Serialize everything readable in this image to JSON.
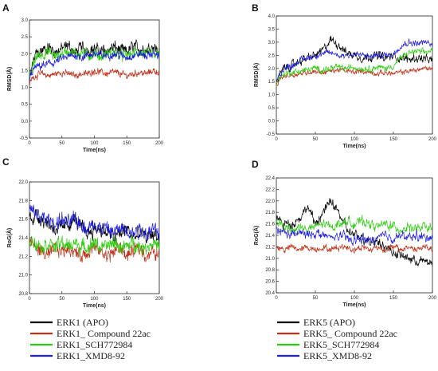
{
  "chart_data": [
    {
      "type": "line",
      "panel": "A",
      "xlabel": "Time(ns)",
      "ylabel": "RMSD(Å)",
      "xlim": [
        0,
        200
      ],
      "ylim": [
        -0.5,
        3.0
      ],
      "xticks": [
        0,
        50,
        100,
        150,
        200
      ],
      "yticks": [
        -0.5,
        0.0,
        0.5,
        1.0,
        1.5,
        2.0,
        2.5,
        3.0
      ],
      "series": [
        {
          "name": "ERK1 (APO)",
          "color": "#000000",
          "x": [
            0,
            5,
            10,
            20,
            30,
            40,
            50,
            60,
            70,
            80,
            90,
            100,
            110,
            120,
            130,
            140,
            150,
            160,
            170,
            180,
            190,
            200
          ],
          "y": [
            1.2,
            1.7,
            2.0,
            2.1,
            2.2,
            2.05,
            2.15,
            2.25,
            2.0,
            2.2,
            2.1,
            2.15,
            2.05,
            2.1,
            2.2,
            2.1,
            2.05,
            2.2,
            2.15,
            2.1,
            2.25,
            2.05
          ],
          "noise": 0.22
        },
        {
          "name": "ERK1_ Compound 22ac",
          "color": "#c0311a",
          "x": [
            0,
            5,
            10,
            20,
            30,
            40,
            50,
            60,
            70,
            80,
            90,
            100,
            110,
            120,
            130,
            140,
            150,
            160,
            170,
            180,
            190,
            200
          ],
          "y": [
            1.1,
            1.3,
            1.35,
            1.4,
            1.35,
            1.4,
            1.45,
            1.4,
            1.35,
            1.4,
            1.4,
            1.5,
            1.45,
            1.4,
            1.45,
            1.4,
            1.35,
            1.4,
            1.45,
            1.4,
            1.5,
            1.45
          ],
          "noise": 0.12
        },
        {
          "name": "ERK1_SCH772984",
          "color": "#2ecc10",
          "x": [
            0,
            5,
            10,
            20,
            30,
            40,
            50,
            60,
            70,
            80,
            90,
            100,
            110,
            120,
            130,
            140,
            150,
            160,
            170,
            180,
            190,
            200
          ],
          "y": [
            1.2,
            1.6,
            1.9,
            2.0,
            2.05,
            1.9,
            2.0,
            2.1,
            2.0,
            2.05,
            1.95,
            2.0,
            1.9,
            2.0,
            2.05,
            1.95,
            1.95,
            2.0,
            2.05,
            1.95,
            2.0,
            1.95
          ],
          "noise": 0.2
        },
        {
          "name": "ERK1_XMD8-92",
          "color": "#1e1ee0",
          "x": [
            0,
            5,
            10,
            20,
            30,
            40,
            50,
            60,
            70,
            80,
            90,
            100,
            110,
            120,
            130,
            140,
            150,
            160,
            170,
            180,
            190,
            200
          ],
          "y": [
            1.2,
            1.5,
            1.6,
            1.65,
            1.7,
            1.75,
            1.85,
            1.9,
            1.95,
            1.9,
            1.95,
            2.0,
            1.95,
            1.95,
            2.0,
            1.95,
            1.9,
            1.95,
            2.0,
            1.95,
            2.0,
            1.95
          ],
          "noise": 0.15
        }
      ]
    },
    {
      "type": "line",
      "panel": "B",
      "xlabel": "Time(ns)",
      "ylabel": "RMSD(Å)",
      "xlim": [
        0,
        200
      ],
      "ylim": [
        -0.5,
        4.0
      ],
      "xticks": [
        0,
        50,
        100,
        150,
        200
      ],
      "yticks": [
        -0.5,
        0.0,
        0.5,
        1.0,
        1.5,
        2.0,
        2.5,
        3.0,
        3.5,
        4.0
      ],
      "series": [
        {
          "name": "ERK5 (APO)",
          "color": "#000000",
          "x": [
            0,
            5,
            10,
            20,
            30,
            40,
            50,
            60,
            70,
            80,
            90,
            100,
            110,
            120,
            130,
            140,
            150,
            160,
            170,
            180,
            190,
            200
          ],
          "y": [
            1.5,
            1.8,
            2.0,
            2.1,
            2.3,
            2.4,
            2.5,
            2.7,
            3.1,
            2.9,
            2.6,
            2.5,
            2.4,
            2.45,
            2.5,
            2.4,
            2.45,
            2.4,
            2.35,
            2.4,
            2.35,
            2.3
          ],
          "noise": 0.2
        },
        {
          "name": "ERK5_ Compound 22ac",
          "color": "#c0311a",
          "x": [
            0,
            5,
            10,
            20,
            30,
            40,
            50,
            60,
            70,
            80,
            90,
            100,
            110,
            120,
            130,
            140,
            150,
            160,
            170,
            180,
            190,
            200
          ],
          "y": [
            1.3,
            1.6,
            1.7,
            1.75,
            1.8,
            1.85,
            1.9,
            1.85,
            1.9,
            1.95,
            1.9,
            1.85,
            1.9,
            1.85,
            1.8,
            1.85,
            1.8,
            1.85,
            1.9,
            1.95,
            2.0,
            2.0
          ],
          "noise": 0.12
        },
        {
          "name": "ERK5_SCH772984",
          "color": "#2ecc10",
          "x": [
            0,
            5,
            10,
            20,
            30,
            40,
            50,
            60,
            70,
            80,
            90,
            100,
            110,
            120,
            130,
            140,
            150,
            160,
            170,
            180,
            190,
            200
          ],
          "y": [
            1.4,
            1.7,
            1.8,
            1.85,
            1.9,
            1.95,
            2.0,
            1.95,
            2.0,
            2.05,
            2.0,
            2.05,
            2.0,
            2.0,
            2.05,
            2.0,
            2.1,
            2.4,
            2.6,
            2.65,
            2.6,
            2.7
          ],
          "noise": 0.15
        },
        {
          "name": "ERK5_XMD8-92",
          "color": "#1e1ee0",
          "x": [
            0,
            5,
            10,
            20,
            30,
            40,
            50,
            60,
            70,
            80,
            90,
            100,
            110,
            120,
            130,
            140,
            150,
            160,
            170,
            180,
            190,
            200
          ],
          "y": [
            1.5,
            1.8,
            2.0,
            2.1,
            2.3,
            2.4,
            2.5,
            2.55,
            2.6,
            2.5,
            2.5,
            2.55,
            2.5,
            2.45,
            2.5,
            2.5,
            2.55,
            2.9,
            3.0,
            2.95,
            3.0,
            2.9
          ],
          "noise": 0.15
        }
      ]
    },
    {
      "type": "line",
      "panel": "C",
      "xlabel": "Time(ns)",
      "ylabel": "RoG(Å)",
      "xlim": [
        0,
        200
      ],
      "ylim": [
        20.8,
        22.0
      ],
      "xticks": [
        0,
        50,
        100,
        150,
        200
      ],
      "yticks": [
        20.8,
        21.0,
        21.2,
        21.4,
        21.6,
        21.8,
        22.0
      ],
      "series": [
        {
          "name": "ERK1 (APO)",
          "color": "#000000",
          "x": [
            0,
            10,
            20,
            30,
            40,
            50,
            60,
            70,
            80,
            90,
            100,
            110,
            120,
            130,
            140,
            150,
            160,
            170,
            180,
            190,
            200
          ],
          "y": [
            21.6,
            21.65,
            21.6,
            21.55,
            21.5,
            21.5,
            21.55,
            21.6,
            21.5,
            21.45,
            21.5,
            21.5,
            21.45,
            21.4,
            21.45,
            21.5,
            21.4,
            21.45,
            21.4,
            21.45,
            21.4
          ],
          "noise": 0.1
        },
        {
          "name": "ERK1_ Compound 22ac",
          "color": "#c0311a",
          "x": [
            0,
            10,
            20,
            30,
            40,
            50,
            60,
            70,
            80,
            90,
            100,
            110,
            120,
            130,
            140,
            150,
            160,
            170,
            180,
            190,
            200
          ],
          "y": [
            21.35,
            21.3,
            21.25,
            21.2,
            21.3,
            21.25,
            21.3,
            21.25,
            21.2,
            21.25,
            21.3,
            21.25,
            21.2,
            21.25,
            21.3,
            21.2,
            21.25,
            21.3,
            21.2,
            21.25,
            21.2
          ],
          "noise": 0.09
        },
        {
          "name": "ERK1_SCH772984",
          "color": "#2ecc10",
          "x": [
            0,
            10,
            20,
            30,
            40,
            50,
            60,
            70,
            80,
            90,
            100,
            110,
            120,
            130,
            140,
            150,
            160,
            170,
            180,
            190,
            200
          ],
          "y": [
            21.4,
            21.35,
            21.3,
            21.35,
            21.3,
            21.35,
            21.3,
            21.35,
            21.3,
            21.3,
            21.35,
            21.3,
            21.3,
            21.35,
            21.3,
            21.3,
            21.35,
            21.3,
            21.3,
            21.35,
            21.3
          ],
          "noise": 0.09
        },
        {
          "name": "ERK1_XMD8-92",
          "color": "#1e1ee0",
          "x": [
            0,
            10,
            20,
            30,
            40,
            50,
            60,
            70,
            80,
            90,
            100,
            110,
            120,
            130,
            140,
            150,
            160,
            170,
            180,
            190,
            200
          ],
          "y": [
            21.7,
            21.65,
            21.6,
            21.6,
            21.55,
            21.6,
            21.55,
            21.6,
            21.55,
            21.5,
            21.55,
            21.5,
            21.5,
            21.45,
            21.5,
            21.5,
            21.45,
            21.5,
            21.45,
            21.5,
            21.45
          ],
          "noise": 0.1
        }
      ]
    },
    {
      "type": "line",
      "panel": "D",
      "xlabel": "Time(ns)",
      "ylabel": "RoG(Å)",
      "xlim": [
        0,
        200
      ],
      "ylim": [
        20.4,
        22.4
      ],
      "xticks": [
        0,
        50,
        100,
        150,
        200
      ],
      "yticks": [
        20.4,
        20.6,
        20.8,
        21.0,
        21.2,
        21.4,
        21.6,
        21.8,
        22.0,
        22.2,
        22.4
      ],
      "series": [
        {
          "name": "ERK5 (APO)",
          "color": "#000000",
          "x": [
            0,
            10,
            20,
            30,
            40,
            50,
            60,
            70,
            80,
            90,
            100,
            110,
            120,
            130,
            140,
            150,
            160,
            170,
            180,
            190,
            200
          ],
          "y": [
            21.7,
            21.6,
            21.6,
            21.7,
            21.9,
            21.6,
            21.8,
            22.0,
            21.8,
            21.5,
            21.4,
            21.35,
            21.3,
            21.3,
            21.2,
            21.1,
            21.05,
            21.0,
            20.95,
            20.95,
            20.9
          ],
          "noise": 0.1
        },
        {
          "name": "ERK5_ Compound 22ac",
          "color": "#c0311a",
          "x": [
            0,
            10,
            20,
            30,
            40,
            50,
            60,
            70,
            80,
            90,
            100,
            110,
            120,
            130,
            140,
            150,
            160,
            170,
            180,
            190,
            200
          ],
          "y": [
            21.2,
            21.15,
            21.2,
            21.15,
            21.2,
            21.15,
            21.2,
            21.15,
            21.2,
            21.2,
            21.15,
            21.2,
            21.15,
            21.2,
            21.15,
            21.2,
            21.15,
            21.2,
            21.15,
            21.2,
            21.15
          ],
          "noise": 0.07
        },
        {
          "name": "ERK5_SCH772984",
          "color": "#2ecc10",
          "x": [
            0,
            10,
            20,
            30,
            40,
            50,
            60,
            70,
            80,
            90,
            100,
            110,
            120,
            130,
            140,
            150,
            160,
            170,
            180,
            190,
            200
          ],
          "y": [
            21.6,
            21.55,
            21.5,
            21.55,
            21.5,
            21.55,
            21.6,
            21.55,
            21.6,
            21.65,
            21.6,
            21.65,
            21.6,
            21.55,
            21.6,
            21.55,
            21.5,
            21.55,
            21.5,
            21.55,
            21.5
          ],
          "noise": 0.1
        },
        {
          "name": "ERK5_XMD8-92",
          "color": "#1e1ee0",
          "x": [
            0,
            10,
            20,
            30,
            40,
            50,
            60,
            70,
            80,
            90,
            100,
            110,
            120,
            130,
            140,
            150,
            160,
            170,
            180,
            190,
            200
          ],
          "y": [
            21.5,
            21.45,
            21.4,
            21.45,
            21.4,
            21.45,
            21.4,
            21.35,
            21.4,
            21.35,
            21.3,
            21.35,
            21.3,
            21.35,
            21.4,
            21.35,
            21.4,
            21.35,
            21.4,
            21.35,
            21.4
          ],
          "noise": 0.1
        }
      ]
    }
  ],
  "legends": [
    {
      "items": [
        {
          "label": "ERK1 (APO)",
          "color": "#000000"
        },
        {
          "label": "ERK1_ Compound 22ac",
          "color": "#c0311a"
        },
        {
          "label": "ERK1_SCH772984",
          "color": "#2ecc10"
        },
        {
          "label": "ERK1_XMD8-92",
          "color": "#1e1ee0"
        }
      ]
    },
    {
      "items": [
        {
          "label": "ERK5 (APO)",
          "color": "#000000"
        },
        {
          "label": "ERK5_ Compound 22ac",
          "color": "#c0311a"
        },
        {
          "label": "ERK5_SCH772984",
          "color": "#2ecc10"
        },
        {
          "label": "ERK5_XMD8-92",
          "color": "#1e1ee0"
        }
      ]
    }
  ]
}
